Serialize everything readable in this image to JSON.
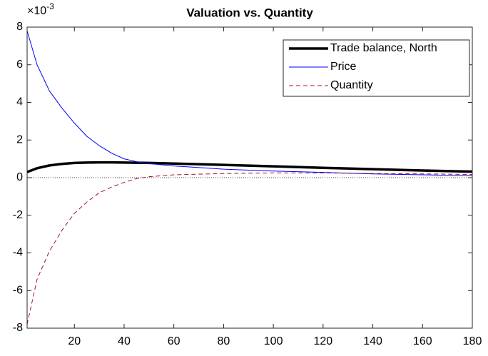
{
  "chart_data": {
    "type": "line",
    "title": "Valuation vs. Quantity",
    "y_multiplier_base": "×10",
    "y_multiplier_exponent": "-3",
    "x": [
      1,
      5,
      10,
      15,
      20,
      25,
      30,
      35,
      40,
      45,
      50,
      60,
      80,
      100,
      120,
      140,
      160,
      180
    ],
    "series": [
      {
        "name": "Trade balance, North",
        "color": "#000000",
        "line_width": 3.5,
        "line_style": "solid",
        "values": [
          0.3,
          0.5,
          0.65,
          0.73,
          0.78,
          0.8,
          0.81,
          0.81,
          0.8,
          0.79,
          0.78,
          0.75,
          0.68,
          0.6,
          0.52,
          0.45,
          0.38,
          0.32
        ]
      },
      {
        "name": "Price",
        "color": "#0000ff",
        "line_width": 1,
        "line_style": "solid",
        "values": [
          7.8,
          6.0,
          4.6,
          3.7,
          2.9,
          2.2,
          1.7,
          1.3,
          1.0,
          0.85,
          0.75,
          0.62,
          0.45,
          0.35,
          0.28,
          0.2,
          0.15,
          0.1
        ]
      },
      {
        "name": "Quantity",
        "color": "#a2142f",
        "line_width": 1,
        "line_style": "dashed",
        "values": [
          -7.8,
          -5.4,
          -3.9,
          -2.8,
          -1.9,
          -1.3,
          -0.8,
          -0.5,
          -0.25,
          -0.05,
          0.05,
          0.15,
          0.22,
          0.25,
          0.25,
          0.22,
          0.2,
          0.17
        ]
      }
    ],
    "xlim": [
      1,
      180
    ],
    "xticks": [
      20,
      40,
      60,
      80,
      100,
      120,
      140,
      160,
      180
    ],
    "ylim": [
      -8,
      8
    ],
    "yticks": [
      -8,
      -6,
      -4,
      -2,
      0,
      2,
      4,
      6,
      8
    ],
    "zero_line": true,
    "grid": false,
    "legend_position": "top-right"
  }
}
